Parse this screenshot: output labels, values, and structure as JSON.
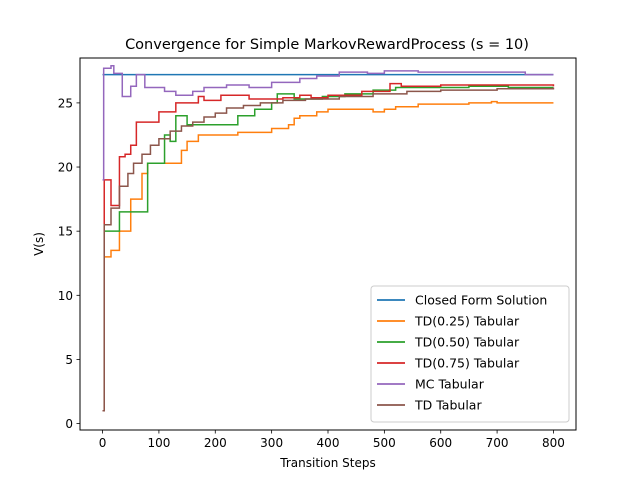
{
  "chart_data": {
    "type": "line",
    "title": "Convergence for Simple MarkovRewardProcess (s = 10)",
    "xlabel": "Transition Steps",
    "ylabel": "V(s)",
    "xlim": [
      -40,
      840
    ],
    "ylim": [
      -0.5,
      28.5
    ],
    "xticks": [
      0,
      100,
      200,
      300,
      400,
      500,
      600,
      700,
      800
    ],
    "yticks": [
      0,
      5,
      10,
      15,
      20,
      25
    ],
    "grid": false,
    "legend_position": "lower-right",
    "series": [
      {
        "name": "Closed Form Solution",
        "color": "#1f77b4",
        "step": false,
        "x": [
          0,
          800
        ],
        "y": [
          27.2,
          27.2
        ]
      },
      {
        "name": "TD(0.25) Tabular",
        "color": "#ff7f0e",
        "step": true,
        "x": [
          0,
          3,
          15,
          30,
          50,
          70,
          80,
          140,
          150,
          170,
          240,
          300,
          330,
          340,
          350,
          380,
          400,
          440,
          480,
          500,
          520,
          560,
          650,
          690,
          700,
          800
        ],
        "y": [
          1,
          13,
          13.5,
          15,
          17.5,
          19.5,
          20.3,
          21.3,
          22,
          22.5,
          22.7,
          23,
          23.3,
          23.8,
          24,
          24.3,
          24.5,
          24.5,
          24.3,
          24.5,
          24.7,
          24.9,
          25,
          25.1,
          25,
          25
        ]
      },
      {
        "name": "TD(0.50) Tabular",
        "color": "#2ca02c",
        "step": true,
        "x": [
          0,
          3,
          30,
          80,
          110,
          120,
          130,
          150,
          190,
          240,
          270,
          300,
          310,
          340,
          360,
          390,
          430,
          480,
          520,
          600,
          650,
          720,
          800
        ],
        "y": [
          1,
          15,
          16.5,
          20.3,
          22.5,
          22,
          24,
          23.3,
          23.3,
          24,
          24.5,
          25,
          25.7,
          25.3,
          25.3,
          25.5,
          25.7,
          26,
          26.2,
          26.2,
          26.3,
          26.2,
          26.2
        ]
      },
      {
        "name": "TD(0.75) Tabular",
        "color": "#d62728",
        "step": true,
        "x": [
          0,
          3,
          15,
          30,
          40,
          50,
          60,
          100,
          130,
          160,
          170,
          180,
          210,
          260,
          320,
          350,
          370,
          400,
          460,
          510,
          530,
          600,
          700,
          800
        ],
        "y": [
          1,
          19,
          17,
          20.8,
          21,
          21.7,
          23.5,
          24.3,
          25,
          25,
          25.5,
          25.2,
          25.6,
          25.3,
          25.4,
          25.6,
          25.4,
          25.6,
          25.9,
          26.5,
          26.3,
          26.4,
          26.4,
          26.3
        ]
      },
      {
        "name": "MC Tabular",
        "color": "#9467bd",
        "step": true,
        "x": [
          0,
          2,
          15,
          20,
          35,
          50,
          60,
          75,
          110,
          130,
          160,
          180,
          220,
          260,
          300,
          350,
          380,
          420,
          470,
          500,
          560,
          650,
          750,
          800
        ],
        "y": [
          19,
          27.7,
          27.9,
          27.3,
          25.5,
          26.3,
          27.2,
          26.2,
          25.9,
          25.6,
          25.9,
          26.2,
          26.4,
          26.2,
          26.6,
          26.9,
          27.1,
          27.4,
          27.3,
          27.5,
          27.4,
          27.4,
          27.2,
          27.2
        ]
      },
      {
        "name": "TD Tabular",
        "color": "#8c564b",
        "step": true,
        "x": [
          0,
          3,
          15,
          30,
          45,
          55,
          70,
          85,
          100,
          120,
          140,
          160,
          180,
          200,
          220,
          250,
          280,
          320,
          360,
          420,
          480,
          540,
          600,
          700,
          800
        ],
        "y": [
          1,
          15.5,
          16.8,
          18.5,
          19.5,
          20.3,
          21,
          21.7,
          22.2,
          22.8,
          23.2,
          23.5,
          23.9,
          24.2,
          24.6,
          24.8,
          25,
          25.2,
          25.3,
          25.5,
          25.7,
          25.9,
          26,
          26.1,
          26.2
        ]
      }
    ]
  }
}
